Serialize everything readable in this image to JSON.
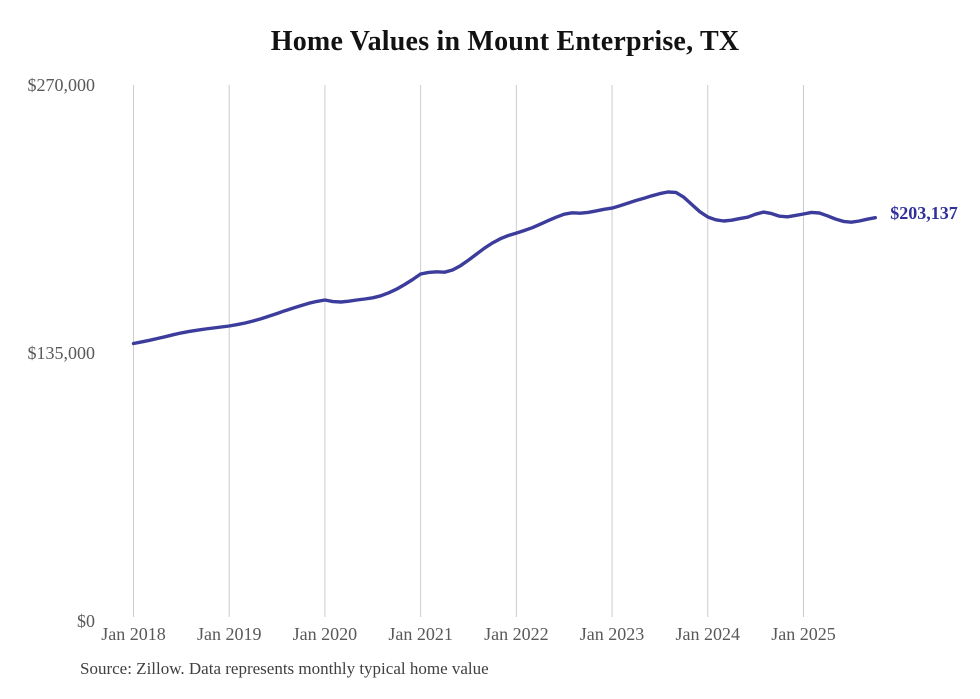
{
  "chart": {
    "title": "Home Values in Mount Enterprise, TX",
    "source_note": "Source: Zillow. Data represents monthly typical home value",
    "end_label": "$203,137",
    "line_color": "#3c3c9c",
    "grid_color": "#cccccc",
    "tick_color": "#595959",
    "title_color": "#121212",
    "end_label_color": "#31319c"
  },
  "chart_data": {
    "type": "line",
    "title": "Home Values in Mount Enterprise, TX",
    "series_name": "Typical home value (monthly)",
    "xlabel": "",
    "ylabel": "",
    "ylim": [
      0,
      270000
    ],
    "grid": "vertical-only",
    "legend": "none",
    "end_annotation": "$203,137",
    "y_ticks": [
      {
        "value": 270000,
        "label": "$270,000"
      },
      {
        "value": 135000,
        "label": "$135,000"
      },
      {
        "value": 0,
        "label": "$0"
      }
    ],
    "x_ticks": [
      {
        "index": 0,
        "label": "Jan 2018"
      },
      {
        "index": 12,
        "label": "Jan 2019"
      },
      {
        "index": 24,
        "label": "Jan 2020"
      },
      {
        "index": 36,
        "label": "Jan 2021"
      },
      {
        "index": 48,
        "label": "Jan 2022"
      },
      {
        "index": 60,
        "label": "Jan 2023"
      },
      {
        "index": 72,
        "label": "Jan 2024"
      },
      {
        "index": 84,
        "label": "Jan 2025"
      }
    ],
    "x": [
      "2018-01",
      "2018-02",
      "2018-03",
      "2018-04",
      "2018-05",
      "2018-06",
      "2018-07",
      "2018-08",
      "2018-09",
      "2018-10",
      "2018-11",
      "2018-12",
      "2019-01",
      "2019-02",
      "2019-03",
      "2019-04",
      "2019-05",
      "2019-06",
      "2019-07",
      "2019-08",
      "2019-09",
      "2019-10",
      "2019-11",
      "2019-12",
      "2020-01",
      "2020-02",
      "2020-03",
      "2020-04",
      "2020-05",
      "2020-06",
      "2020-07",
      "2020-08",
      "2020-09",
      "2020-10",
      "2020-11",
      "2020-12",
      "2021-01",
      "2021-02",
      "2021-03",
      "2021-04",
      "2021-05",
      "2021-06",
      "2021-07",
      "2021-08",
      "2021-09",
      "2021-10",
      "2021-11",
      "2021-12",
      "2022-01",
      "2022-02",
      "2022-03",
      "2022-04",
      "2022-05",
      "2022-06",
      "2022-07",
      "2022-08",
      "2022-09",
      "2022-10",
      "2022-11",
      "2022-12",
      "2023-01",
      "2023-02",
      "2023-03",
      "2023-04",
      "2023-05",
      "2023-06",
      "2023-07",
      "2023-08",
      "2023-09",
      "2023-10",
      "2023-11",
      "2023-12",
      "2024-01",
      "2024-02",
      "2024-03",
      "2024-04",
      "2024-05",
      "2024-06",
      "2024-07",
      "2024-08",
      "2024-09",
      "2024-10",
      "2024-11",
      "2024-12",
      "2025-01",
      "2025-02",
      "2025-03",
      "2025-04",
      "2025-05",
      "2025-06",
      "2025-07",
      "2025-08",
      "2025-09",
      "2025-10"
    ],
    "values": [
      139800,
      140600,
      141400,
      142300,
      143200,
      144200,
      145100,
      145900,
      146500,
      147100,
      147600,
      148100,
      148600,
      149300,
      150100,
      151100,
      152300,
      153600,
      154900,
      156300,
      157600,
      158900,
      160100,
      161000,
      161700,
      160900,
      160700,
      161100,
      161700,
      162200,
      162800,
      163800,
      165300,
      167200,
      169500,
      172000,
      174800,
      175600,
      175900,
      175700,
      176800,
      179000,
      181800,
      184800,
      187800,
      190400,
      192600,
      194200,
      195400,
      196700,
      198100,
      199900,
      201700,
      203400,
      204900,
      205600,
      205400,
      205800,
      206600,
      207400,
      208000,
      209200,
      210500,
      211800,
      213000,
      214200,
      215300,
      216100,
      215900,
      213500,
      209800,
      206200,
      203500,
      202100,
      201500,
      201900,
      202700,
      203400,
      204900,
      206000,
      205200,
      203900,
      203600,
      204300,
      205000,
      205800,
      205500,
      204100,
      202500,
      201300,
      200900,
      201500,
      202400,
      203137
    ]
  }
}
